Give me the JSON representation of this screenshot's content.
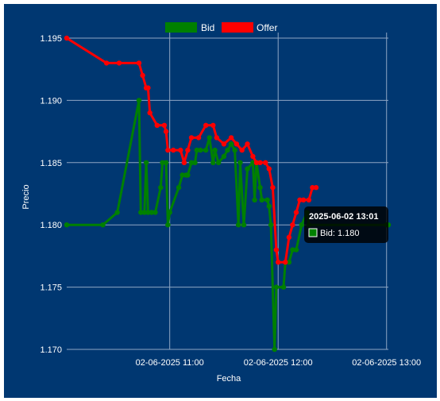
{
  "chart_data": {
    "type": "line",
    "title": "",
    "xlabel": "Fecha",
    "ylabel": "Precio",
    "x_ticks": [
      "02-06-2025 11:00",
      "02-06-2025 12:00",
      "02-06-2025 13:00"
    ],
    "x_tick_minutes": [
      660,
      720,
      780
    ],
    "y_ticks": [
      "1.195",
      "1.190",
      "1.185",
      "1.180",
      "1.175",
      "1.170"
    ],
    "y_tick_values": [
      1.195,
      1.19,
      1.185,
      1.18,
      1.175,
      1.17
    ],
    "ylim": [
      1.17,
      1.196
    ],
    "grid": true,
    "legend_position": "top",
    "x_unit": "minutes since 02-06-2025 00:00",
    "series": [
      {
        "name": "Bid",
        "color": "#008000",
        "points": [
          [
            603,
            1.18
          ],
          [
            623,
            1.18
          ],
          [
            631,
            1.181
          ],
          [
            643,
            1.19
          ],
          [
            644,
            1.181
          ],
          [
            646,
            1.181
          ],
          [
            647,
            1.185
          ],
          [
            648,
            1.181
          ],
          [
            650,
            1.181
          ],
          [
            652,
            1.181
          ],
          [
            655,
            1.183
          ],
          [
            656,
            1.185
          ],
          [
            658,
            1.185
          ],
          [
            659,
            1.18
          ],
          [
            660,
            1.181
          ],
          [
            665,
            1.183
          ],
          [
            667,
            1.184
          ],
          [
            669,
            1.184
          ],
          [
            670,
            1.184
          ],
          [
            672,
            1.185
          ],
          [
            674,
            1.185
          ],
          [
            675,
            1.186
          ],
          [
            677,
            1.186
          ],
          [
            680,
            1.186
          ],
          [
            682,
            1.187
          ],
          [
            684,
            1.185
          ],
          [
            685,
            1.186
          ],
          [
            687,
            1.185
          ],
          [
            690,
            1.1855
          ],
          [
            692,
            1.186
          ],
          [
            694,
            1.1865
          ],
          [
            696,
            1.186
          ],
          [
            698,
            1.18
          ],
          [
            699,
            1.185
          ],
          [
            701,
            1.18
          ],
          [
            703,
            1.1845
          ],
          [
            706,
            1.185
          ],
          [
            707,
            1.182
          ],
          [
            708,
            1.185
          ],
          [
            710,
            1.183
          ],
          [
            711,
            1.182
          ],
          [
            714,
            1.182
          ],
          [
            715,
            1.1815
          ],
          [
            716,
            1.18
          ],
          [
            718,
            1.17
          ],
          [
            719,
            1.175
          ],
          [
            723,
            1.175
          ],
          [
            724,
            1.177
          ],
          [
            726,
            1.177
          ],
          [
            728,
            1.178
          ],
          [
            730,
            1.178
          ],
          [
            733,
            1.18
          ],
          [
            736,
            1.181
          ],
          [
            737,
            1.18
          ],
          [
            780,
            1.18
          ],
          [
            781,
            1.18
          ]
        ]
      },
      {
        "name": "Offer",
        "color": "#ff0000",
        "points": [
          [
            603,
            1.195
          ],
          [
            625,
            1.193
          ],
          [
            632,
            1.193
          ],
          [
            643,
            1.193
          ],
          [
            645,
            1.192
          ],
          [
            647,
            1.191
          ],
          [
            648,
            1.191
          ],
          [
            649,
            1.189
          ],
          [
            653,
            1.188
          ],
          [
            657,
            1.188
          ],
          [
            658,
            1.1875
          ],
          [
            659,
            1.186
          ],
          [
            662,
            1.186
          ],
          [
            666,
            1.186
          ],
          [
            668,
            1.185
          ],
          [
            670,
            1.186
          ],
          [
            672,
            1.187
          ],
          [
            676,
            1.187
          ],
          [
            680,
            1.188
          ],
          [
            684,
            1.188
          ],
          [
            686,
            1.187
          ],
          [
            690,
            1.1865
          ],
          [
            694,
            1.187
          ],
          [
            697,
            1.1865
          ],
          [
            700,
            1.186
          ],
          [
            703,
            1.1865
          ],
          [
            706,
            1.1855
          ],
          [
            708,
            1.185
          ],
          [
            710,
            1.185
          ],
          [
            713,
            1.185
          ],
          [
            715,
            1.1845
          ],
          [
            717,
            1.183
          ],
          [
            719,
            1.178
          ],
          [
            720,
            1.177
          ],
          [
            724,
            1.177
          ],
          [
            726,
            1.179
          ],
          [
            728,
            1.18
          ],
          [
            730,
            1.181
          ],
          [
            732,
            1.182
          ],
          [
            734,
            1.182
          ],
          [
            737,
            1.182
          ],
          [
            739,
            1.183
          ],
          [
            741,
            1.183
          ]
        ]
      }
    ],
    "tooltip": {
      "title": "2025-06-02 13:01",
      "label": "Bid: 1.180",
      "swatch_color": "#008000"
    }
  }
}
